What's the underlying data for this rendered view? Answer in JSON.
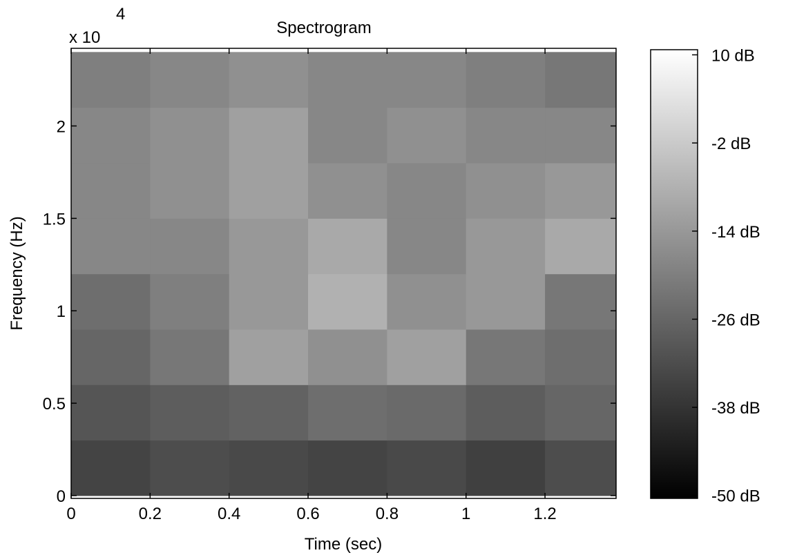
{
  "chart_data": {
    "type": "heatmap",
    "title": "Spectrogram",
    "x_label": "Time (sec)",
    "y_label": "Frequency (Hz)",
    "y_multiplier": "x 10",
    "y_multiplier_exponent": "4",
    "x_edges": [
      0,
      0.2,
      0.4,
      0.6,
      0.8,
      1.0,
      1.2,
      1.4
    ],
    "y_edges": [
      0,
      0.3,
      0.6,
      0.9,
      1.2,
      1.5,
      1.8,
      2.1,
      2.4
    ],
    "z": [
      [
        -34,
        -32,
        -33,
        -34,
        -33,
        -35,
        -32
      ],
      [
        -30,
        -28,
        -27,
        -24,
        -25,
        -28,
        -26
      ],
      [
        -26,
        -22,
        -12,
        -16,
        -12,
        -22,
        -24
      ],
      [
        -24,
        -20,
        -14,
        -8,
        -16,
        -14,
        -22
      ],
      [
        -18,
        -18,
        -14,
        -10,
        -18,
        -14,
        -10
      ],
      [
        -18,
        -16,
        -12,
        -16,
        -18,
        -16,
        -14
      ],
      [
        -18,
        -16,
        -12,
        -18,
        -16,
        -18,
        -18
      ],
      [
        -20,
        -18,
        -16,
        -18,
        -18,
        -20,
        -22
      ]
    ],
    "xlim": [
      0,
      1.38
    ],
    "ylim": [
      -0.015,
      2.42
    ],
    "xticks": [
      0,
      0.2,
      0.4,
      0.6,
      0.8,
      1,
      1.2
    ],
    "yticks": [
      0,
      0.5,
      1,
      1.5,
      2
    ],
    "clim": [
      -50.4,
      10.7
    ],
    "colorbar_ticks": [
      {
        "value": 10,
        "label": "10 dB"
      },
      {
        "value": -2,
        "label": "-2 dB"
      },
      {
        "value": -14,
        "label": "-14 dB"
      },
      {
        "value": -26,
        "label": "-26 dB"
      },
      {
        "value": -38,
        "label": "-38 dB"
      },
      {
        "value": -50,
        "label": "-50 dB"
      }
    ],
    "colormap": "gray"
  }
}
